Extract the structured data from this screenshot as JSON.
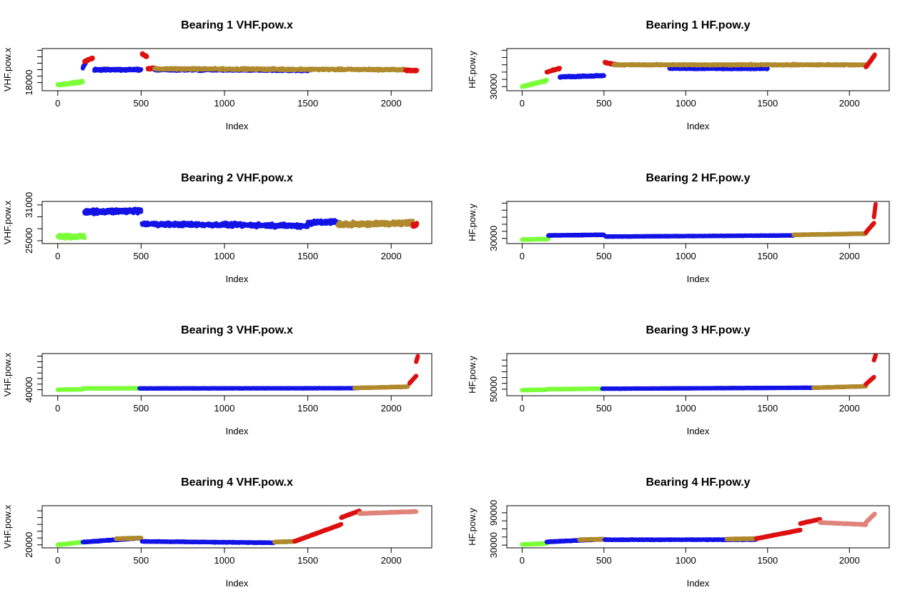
{
  "colors": {
    "green": "#7cff3a",
    "blue": "#1414e6",
    "gold": "#b08a2e",
    "red": "#dd1111",
    "salmon": "#e0847a"
  },
  "chart_data": [
    {
      "type": "scatter",
      "title": "Bearing 1 VHF.pow.x",
      "xlabel": "Index",
      "ylabel": "VHF.pow.x",
      "xlim": [
        0,
        2150
      ],
      "ylim": [
        17600,
        20000
      ],
      "xticks": [
        0,
        500,
        1000,
        1500,
        2000
      ],
      "yticks": [
        18000,
        18400,
        18800,
        19200,
        19600,
        20000
      ],
      "ytick_labels": [
        "18000",
        "",
        "",
        "",
        "",
        ""
      ],
      "noise": 80,
      "segments": [
        {
          "color": "green",
          "x0": 0,
          "x1": 150,
          "y0": 17850,
          "y1": 18050
        },
        {
          "color": "blue",
          "x0": 150,
          "x1": 170,
          "y0": 18900,
          "y1": 19300
        },
        {
          "color": "red",
          "x0": 160,
          "x1": 210,
          "y0": 19300,
          "y1": 19500
        },
        {
          "color": "blue",
          "x0": 220,
          "x1": 500,
          "y0": 18800,
          "y1": 18800
        },
        {
          "color": "red",
          "x0": 505,
          "x1": 535,
          "y0": 19800,
          "y1": 19600
        },
        {
          "color": "red",
          "x0": 540,
          "x1": 580,
          "y0": 18850,
          "y1": 18900
        },
        {
          "color": "blue",
          "x0": 580,
          "x1": 1500,
          "y0": 18800,
          "y1": 18750
        },
        {
          "color": "gold",
          "x0": 580,
          "x1": 2080,
          "y0": 18850,
          "y1": 18800
        },
        {
          "color": "red",
          "x0": 2085,
          "x1": 2155,
          "y0": 18750,
          "y1": 18750
        }
      ]
    },
    {
      "type": "scatter",
      "title": "Bearing 1 HF.pow.y",
      "xlabel": "Index",
      "ylabel": "HF.pow.y",
      "xlim": [
        0,
        2150
      ],
      "ylim": [
        29900,
        31500
      ],
      "xticks": [
        0,
        500,
        1000,
        1500,
        2000
      ],
      "yticks": [
        30000,
        30300,
        30600,
        30900,
        31200,
        31500
      ],
      "ytick_labels": [
        "30000",
        "",
        "",
        "",
        "",
        ""
      ],
      "noise": 40,
      "segments": [
        {
          "color": "green",
          "x0": 0,
          "x1": 150,
          "y0": 30000,
          "y1": 30250
        },
        {
          "color": "red",
          "x0": 150,
          "x1": 230,
          "y0": 30600,
          "y1": 30750
        },
        {
          "color": "blue",
          "x0": 230,
          "x1": 500,
          "y0": 30400,
          "y1": 30450
        },
        {
          "color": "red",
          "x0": 505,
          "x1": 580,
          "y0": 31000,
          "y1": 30900
        },
        {
          "color": "blue",
          "x0": 900,
          "x1": 1500,
          "y0": 30750,
          "y1": 30750
        },
        {
          "color": "gold",
          "x0": 560,
          "x1": 2100,
          "y0": 30900,
          "y1": 30900
        },
        {
          "color": "red",
          "x0": 2100,
          "x1": 2155,
          "y0": 30800,
          "y1": 31300
        }
      ]
    },
    {
      "type": "scatter",
      "title": "Bearing 2 VHF.pow.x",
      "xlabel": "Index",
      "ylabel": "VHF.pow.x",
      "xlim": [
        0,
        2150
      ],
      "ylim": [
        24800,
        31300
      ],
      "xticks": [
        0,
        500,
        1000,
        1500,
        2000
      ],
      "yticks": [
        25000,
        27000,
        29000,
        31000
      ],
      "ytick_labels": [
        "25000",
        "",
        "",
        "31000"
      ],
      "noise": 450,
      "segments": [
        {
          "color": "green",
          "x0": 0,
          "x1": 160,
          "y0": 25700,
          "y1": 25700
        },
        {
          "color": "blue",
          "x0": 160,
          "x1": 500,
          "y0": 29800,
          "y1": 30000
        },
        {
          "color": "blue",
          "x0": 505,
          "x1": 1500,
          "y0": 27800,
          "y1": 27500
        },
        {
          "color": "blue",
          "x0": 1500,
          "x1": 1680,
          "y0": 28000,
          "y1": 28200
        },
        {
          "color": "gold",
          "x0": 1680,
          "x1": 2130,
          "y0": 27700,
          "y1": 28000
        },
        {
          "color": "red",
          "x0": 2130,
          "x1": 2155,
          "y0": 27500,
          "y1": 27800
        }
      ]
    },
    {
      "type": "scatter",
      "title": "Bearing 2 HF.pow.y",
      "xlabel": "Index",
      "ylabel": "HF.pow.y",
      "xlim": [
        0,
        2150
      ],
      "ylim": [
        29700,
        33000
      ],
      "xticks": [
        0,
        500,
        1000,
        1500,
        2000
      ],
      "yticks": [
        30000,
        30600,
        31200,
        31800,
        32400,
        33000
      ],
      "ytick_labels": [
        "30000",
        "",
        "",
        "",
        "",
        ""
      ],
      "noise": 30,
      "segments": [
        {
          "color": "green",
          "x0": 0,
          "x1": 160,
          "y0": 29900,
          "y1": 29950
        },
        {
          "color": "blue",
          "x0": 160,
          "x1": 500,
          "y0": 30250,
          "y1": 30300
        },
        {
          "color": "blue",
          "x0": 510,
          "x1": 1660,
          "y0": 30150,
          "y1": 30250
        },
        {
          "color": "gold",
          "x0": 1660,
          "x1": 2100,
          "y0": 30300,
          "y1": 30400
        },
        {
          "color": "red",
          "x0": 2100,
          "x1": 2150,
          "y0": 30500,
          "y1": 31300
        },
        {
          "color": "red",
          "x0": 2150,
          "x1": 2160,
          "y0": 31800,
          "y1": 32900
        }
      ]
    },
    {
      "type": "scatter",
      "title": "Bearing 3 VHF.pow.x",
      "xlabel": "Index",
      "ylabel": "VHF.pow.x",
      "xlim": [
        0,
        2150
      ],
      "ylim": [
        39000,
        48000
      ],
      "xticks": [
        0,
        500,
        1000,
        1500,
        2000
      ],
      "yticks": [
        40000,
        41300,
        42600,
        43900,
        45200,
        46500,
        47800
      ],
      "ytick_labels": [
        "40000",
        "",
        "",
        "",
        "",
        "",
        ""
      ],
      "noise": 60,
      "segments": [
        {
          "color": "green",
          "x0": 0,
          "x1": 150,
          "y0": 40000,
          "y1": 40100
        },
        {
          "color": "green",
          "x0": 150,
          "x1": 490,
          "y0": 40300,
          "y1": 40350
        },
        {
          "color": "blue",
          "x0": 490,
          "x1": 1780,
          "y0": 40300,
          "y1": 40350
        },
        {
          "color": "gold",
          "x0": 1780,
          "x1": 2100,
          "y0": 40400,
          "y1": 40700
        },
        {
          "color": "red",
          "x0": 2110,
          "x1": 2150,
          "y0": 41500,
          "y1": 43200
        },
        {
          "color": "red",
          "x0": 2150,
          "x1": 2160,
          "y0": 46500,
          "y1": 47800
        }
      ]
    },
    {
      "type": "scatter",
      "title": "Bearing 3 HF.pow.y",
      "xlabel": "Index",
      "ylabel": "HF.pow.y",
      "xlim": [
        0,
        2150
      ],
      "ylim": [
        49000,
        57000
      ],
      "xticks": [
        0,
        500,
        1000,
        1500,
        2000
      ],
      "yticks": [
        50000,
        51200,
        52400,
        53600,
        54800,
        56000
      ],
      "ytick_labels": [
        "50000",
        "",
        "",
        "",
        "",
        ""
      ],
      "noise": 50,
      "segments": [
        {
          "color": "green",
          "x0": 0,
          "x1": 150,
          "y0": 49800,
          "y1": 49900
        },
        {
          "color": "green",
          "x0": 150,
          "x1": 490,
          "y0": 50000,
          "y1": 50100
        },
        {
          "color": "blue",
          "x0": 490,
          "x1": 1780,
          "y0": 50100,
          "y1": 50300
        },
        {
          "color": "gold",
          "x0": 1780,
          "x1": 2100,
          "y0": 50300,
          "y1": 50600
        },
        {
          "color": "red",
          "x0": 2100,
          "x1": 2150,
          "y0": 51000,
          "y1": 52500
        },
        {
          "color": "red",
          "x0": 2150,
          "x1": 2160,
          "y0": 56000,
          "y1": 57000
        }
      ]
    },
    {
      "type": "scatter",
      "title": "Bearing 4 VHF.pow.x",
      "xlabel": "Index",
      "ylabel": "VHF.pow.x",
      "xlim": [
        0,
        2150
      ],
      "ylim": [
        18000,
        75000
      ],
      "xticks": [
        0,
        500,
        1000,
        1500,
        2000
      ],
      "yticks": [
        20000,
        30000,
        40000,
        50000,
        60000,
        70000
      ],
      "ytick_labels": [
        "20000",
        "",
        "",
        "",
        "",
        ""
      ],
      "noise": 800,
      "segments": [
        {
          "color": "green",
          "x0": 0,
          "x1": 150,
          "y0": 20000,
          "y1": 24000
        },
        {
          "color": "blue",
          "x0": 150,
          "x1": 500,
          "y0": 24000,
          "y1": 30000
        },
        {
          "color": "gold",
          "x0": 350,
          "x1": 500,
          "y0": 29000,
          "y1": 30000
        },
        {
          "color": "blue",
          "x0": 505,
          "x1": 1300,
          "y0": 25000,
          "y1": 23000
        },
        {
          "color": "gold",
          "x0": 1300,
          "x1": 1420,
          "y0": 24000,
          "y1": 25000
        },
        {
          "color": "red",
          "x0": 1420,
          "x1": 1700,
          "y0": 25000,
          "y1": 50000
        },
        {
          "color": "red",
          "x0": 1700,
          "x1": 1810,
          "y0": 60000,
          "y1": 70000
        },
        {
          "color": "salmon",
          "x0": 1810,
          "x1": 2150,
          "y0": 66000,
          "y1": 69000
        }
      ]
    },
    {
      "type": "scatter",
      "title": "Bearing 4 HF.pow.y",
      "xlabel": "Index",
      "ylabel": "HF.pow.y",
      "xlim": [
        0,
        2150
      ],
      "ylim": [
        28000,
        100000
      ],
      "xticks": [
        0,
        500,
        1000,
        1500,
        2000
      ],
      "yticks": [
        30000,
        45000,
        60000,
        75000,
        90000
      ],
      "ytick_labels": [
        "30000",
        "",
        "",
        "",
        "90000"
      ],
      "noise": 900,
      "segments": [
        {
          "color": "green",
          "x0": 0,
          "x1": 150,
          "y0": 31000,
          "y1": 33000
        },
        {
          "color": "blue",
          "x0": 150,
          "x1": 500,
          "y0": 36000,
          "y1": 41000
        },
        {
          "color": "gold",
          "x0": 350,
          "x1": 500,
          "y0": 40000,
          "y1": 41000
        },
        {
          "color": "blue",
          "x0": 505,
          "x1": 1430,
          "y0": 40000,
          "y1": 40000
        },
        {
          "color": "gold",
          "x0": 1250,
          "x1": 1420,
          "y0": 41000,
          "y1": 42000
        },
        {
          "color": "red",
          "x0": 1430,
          "x1": 1700,
          "y0": 42000,
          "y1": 58000
        },
        {
          "color": "red",
          "x0": 1700,
          "x1": 1820,
          "y0": 70000,
          "y1": 78000
        },
        {
          "color": "salmon",
          "x0": 1820,
          "x1": 2100,
          "y0": 72000,
          "y1": 68000
        },
        {
          "color": "salmon",
          "x0": 2100,
          "x1": 2155,
          "y0": 72000,
          "y1": 88000
        }
      ]
    }
  ]
}
